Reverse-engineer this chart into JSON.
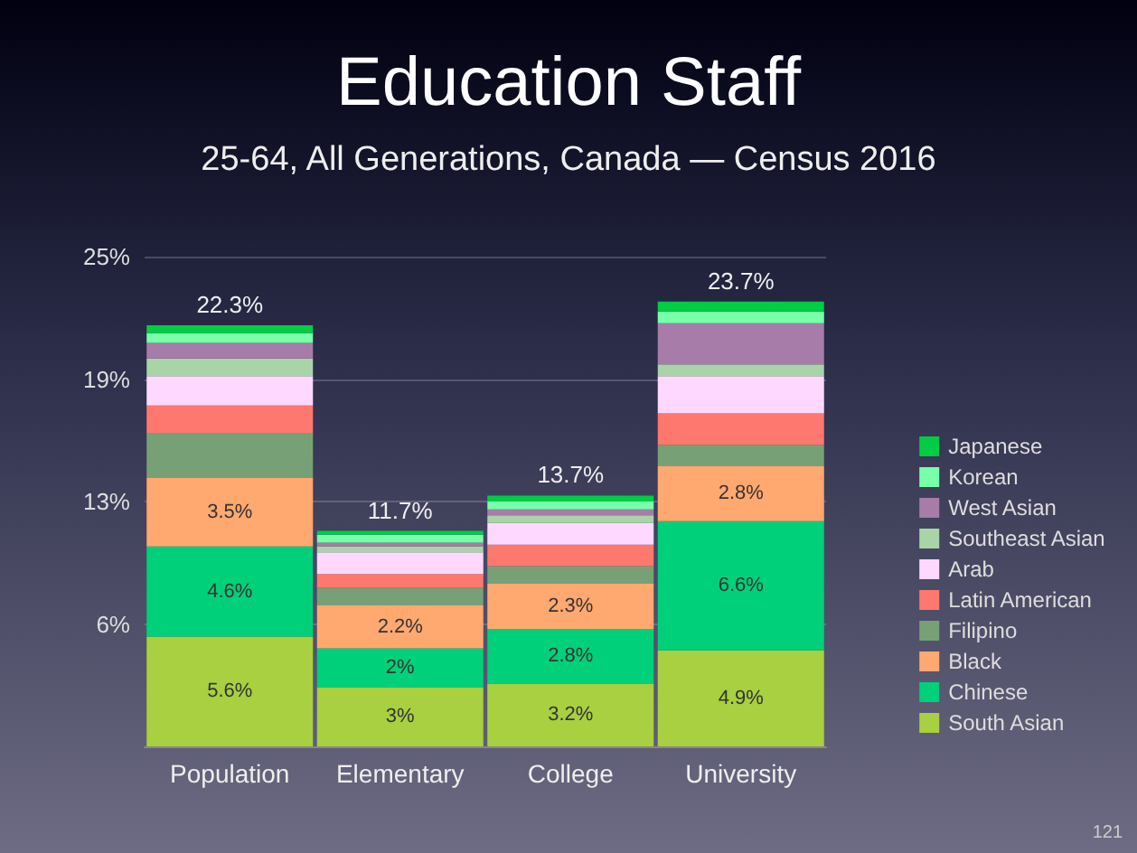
{
  "chart_data": {
    "type": "bar",
    "title": "Education Staff",
    "subtitle": "25-64, All Generations, Canada — Census 2016",
    "stacked": true,
    "categories": [
      "Population",
      "Elementary",
      "College",
      "University"
    ],
    "ylim": [
      0,
      25
    ],
    "yticks": [
      {
        "value": 6.25,
        "label": "6%"
      },
      {
        "value": 12.5,
        "label": "13%"
      },
      {
        "value": 18.75,
        "label": "19%"
      },
      {
        "value": 25,
        "label": "25%"
      }
    ],
    "grid": "y",
    "legend": "right",
    "annotations": [
      "121",
      {
        "text": "22.3%",
        "x": "Population",
        "y": 21.5
      },
      {
        "text": "11.7%",
        "x": "Elementary",
        "y": 11
      },
      {
        "text": "13.7%",
        "x": "College",
        "y": 12.8
      },
      {
        "text": "23.7%",
        "x": "University",
        "y": 22.7
      }
    ],
    "series": [
      {
        "name": "South Asian",
        "color": "#a8d040",
        "values": [
          5.6,
          3,
          3.2,
          4.9
        ],
        "value_labels": [
          "5.6%",
          "3%",
          "3.2%",
          "4.9%"
        ]
      },
      {
        "name": "Chinese",
        "color": "#00d07a",
        "values": [
          4.6,
          2,
          2.8,
          6.6
        ],
        "value_labels": [
          "4.6%",
          "2%",
          "2.8%",
          "6.6%"
        ]
      },
      {
        "name": "Black",
        "color": "#ffa870",
        "values": [
          3.5,
          2.2,
          2.3,
          2.8
        ],
        "value_labels": [
          "3.5%",
          "2.2%",
          "2.3%",
          "2.8%"
        ]
      },
      {
        "name": "Filipino",
        "color": "#77a077",
        "values": [
          2.3,
          0.9,
          0.9,
          1.1
        ]
      },
      {
        "name": "Latin American",
        "color": "#ff7870",
        "values": [
          1.4,
          0.7,
          1.1,
          1.6
        ]
      },
      {
        "name": "Arab",
        "color": "#ffd8ff",
        "values": [
          1.5,
          1.1,
          1.1,
          1.9
        ]
      },
      {
        "name": "Southeast Asian",
        "color": "#a8d4a8",
        "values": [
          0.9,
          0.3,
          0.4,
          0.6
        ]
      },
      {
        "name": "West Asian",
        "color": "#a87ca8",
        "values": [
          0.8,
          0.2,
          0.3,
          2.1
        ]
      },
      {
        "name": "Korean",
        "color": "#77ffaa",
        "values": [
          0.5,
          0.4,
          0.4,
          0.6
        ]
      },
      {
        "name": "Japanese",
        "color": "#00cc44",
        "values": [
          0.4,
          0.2,
          0.3,
          0.5
        ]
      }
    ]
  }
}
